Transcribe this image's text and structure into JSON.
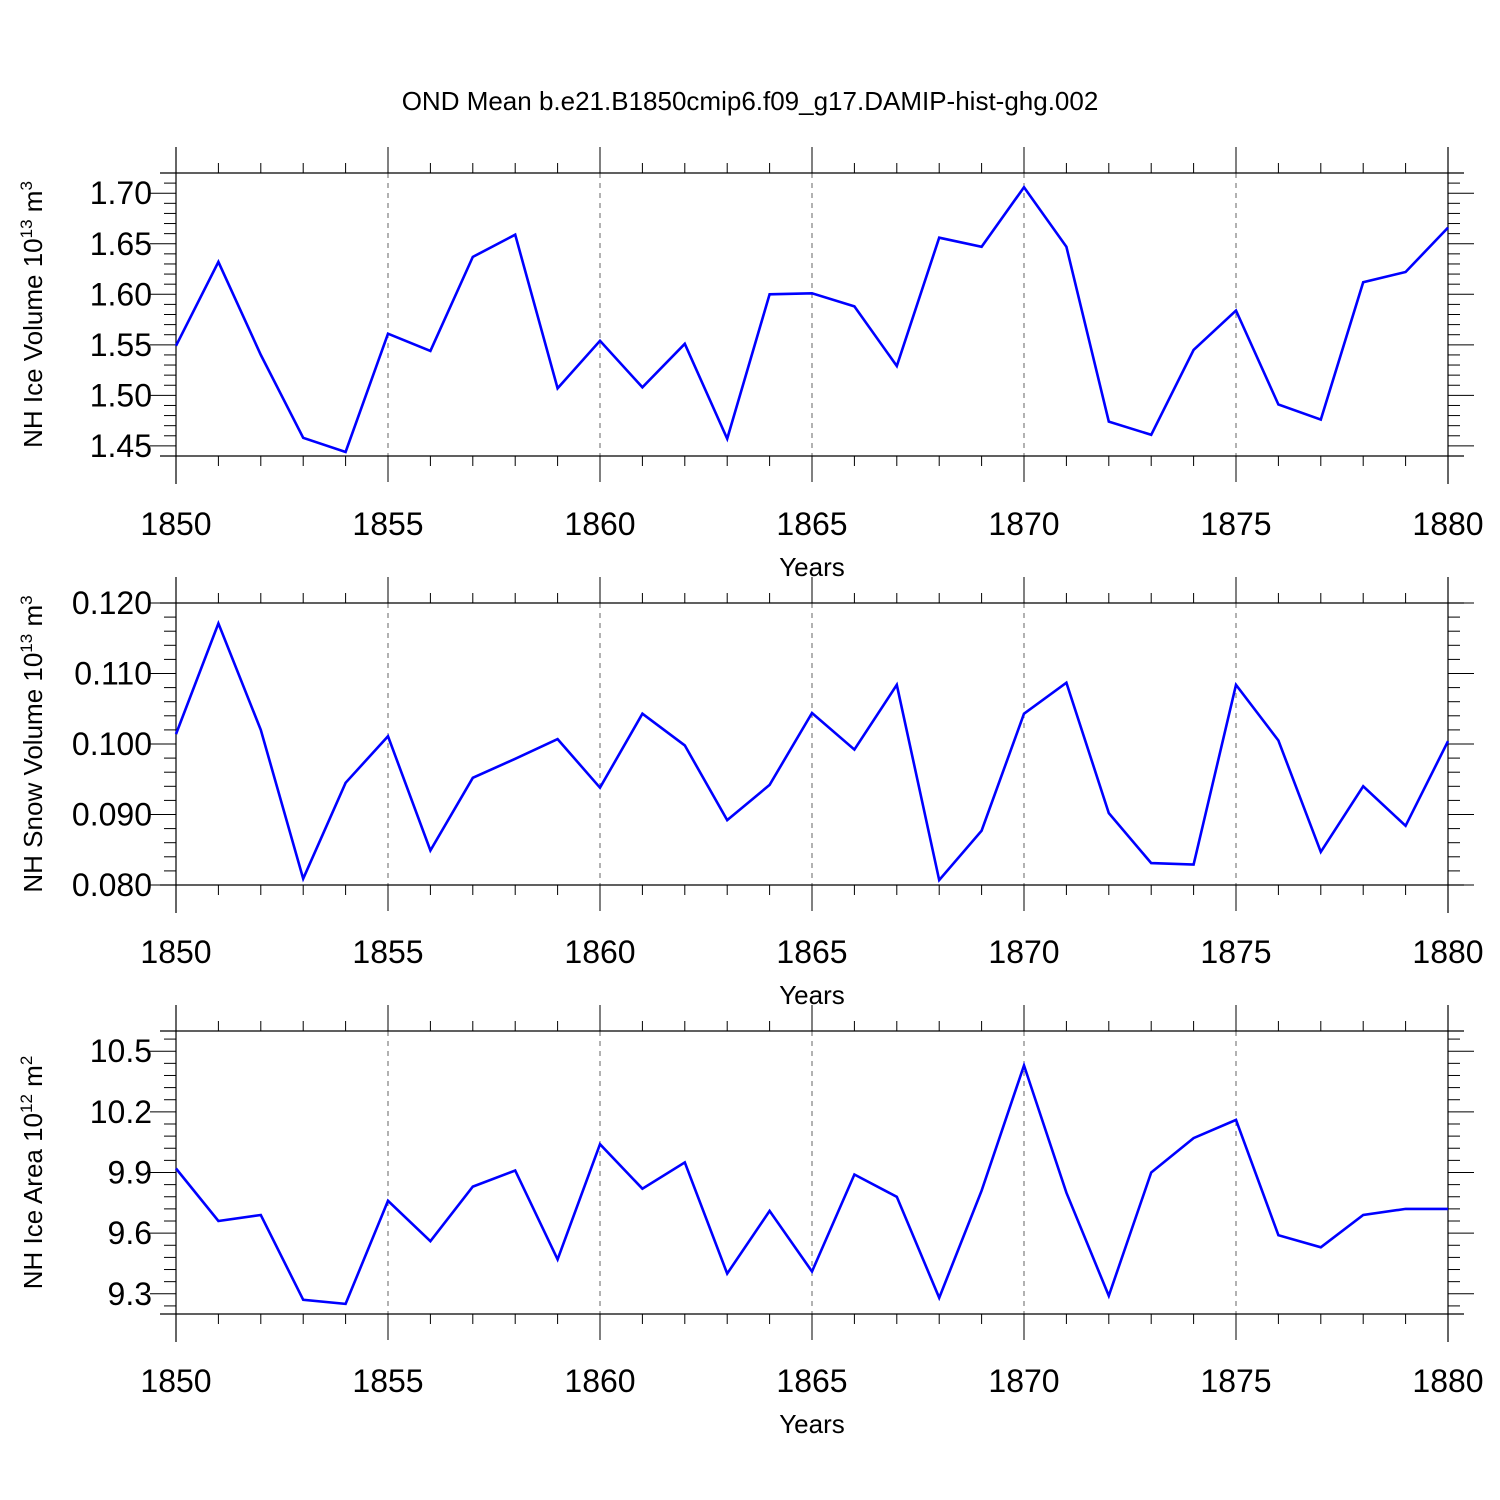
{
  "title": "OND Mean b.e21.B1850cmip6.f09_g17.DAMIP-hist-ghg.002",
  "line_color": "#0000ff",
  "chart_data": [
    {
      "type": "line",
      "title": "OND Mean b.e21.B1850cmip6.f09_g17.DAMIP-hist-ghg.002",
      "xlabel": "Years",
      "ylabel": {
        "main": "NH Ice Volume 10",
        "exp": "13",
        "unit": " m",
        "unit_exp": "3"
      },
      "xlim": [
        1850,
        1880
      ],
      "ylim": [
        1.44,
        1.72
      ],
      "xticks": [
        1850,
        1855,
        1860,
        1865,
        1870,
        1875,
        1880
      ],
      "yticks": [
        1.45,
        1.5,
        1.55,
        1.6,
        1.65,
        1.7
      ],
      "ytick_labels": [
        "1.45",
        "1.50",
        "1.55",
        "1.60",
        "1.65",
        "1.70"
      ],
      "grid": "x-dashed",
      "x": [
        1850,
        1851,
        1852,
        1853,
        1854,
        1855,
        1856,
        1857,
        1858,
        1859,
        1860,
        1861,
        1862,
        1863,
        1864,
        1865,
        1866,
        1867,
        1868,
        1869,
        1870,
        1871,
        1872,
        1873,
        1874,
        1875,
        1876,
        1877,
        1878,
        1879,
        1880
      ],
      "values": [
        1.549,
        1.632,
        1.54,
        1.458,
        1.444,
        1.561,
        1.544,
        1.637,
        1.659,
        1.507,
        1.554,
        1.508,
        1.551,
        1.457,
        1.6,
        1.601,
        1.588,
        1.529,
        1.656,
        1.647,
        1.706,
        1.647,
        1.474,
        1.461,
        1.545,
        1.584,
        1.491,
        1.476,
        1.612,
        1.622,
        1.666
      ]
    },
    {
      "type": "line",
      "xlabel": "Years",
      "ylabel": {
        "main": "NH Snow Volume 10",
        "exp": "13",
        "unit": " m",
        "unit_exp": "3"
      },
      "xlim": [
        1850,
        1880
      ],
      "ylim": [
        0.08,
        0.12
      ],
      "xticks": [
        1850,
        1855,
        1860,
        1865,
        1870,
        1875,
        1880
      ],
      "yticks": [
        0.08,
        0.09,
        0.1,
        0.11,
        0.12
      ],
      "ytick_labels": [
        "0.080",
        "0.090",
        "0.100",
        "0.110",
        "0.120"
      ],
      "grid": "x-dashed",
      "x": [
        1850,
        1851,
        1852,
        1853,
        1854,
        1855,
        1856,
        1857,
        1858,
        1859,
        1860,
        1861,
        1862,
        1863,
        1864,
        1865,
        1866,
        1867,
        1868,
        1869,
        1870,
        1871,
        1872,
        1873,
        1874,
        1875,
        1876,
        1877,
        1878,
        1879,
        1880
      ],
      "values": [
        0.1014,
        0.1171,
        0.102,
        0.0809,
        0.0945,
        0.1011,
        0.0849,
        0.0952,
        0.0979,
        0.1007,
        0.0938,
        0.1043,
        0.0998,
        0.0892,
        0.0942,
        0.1044,
        0.0992,
        0.1084,
        0.0807,
        0.0877,
        0.1043,
        0.1087,
        0.0902,
        0.0831,
        0.0829,
        0.1084,
        0.1005,
        0.0847,
        0.094,
        0.0884,
        0.1004
      ]
    },
    {
      "type": "line",
      "xlabel": "Years",
      "ylabel": {
        "main": "NH Ice Area 10",
        "exp": "12",
        "unit": " m",
        "unit_exp": "2"
      },
      "xlim": [
        1850,
        1880
      ],
      "ylim": [
        9.2,
        10.6
      ],
      "xticks": [
        1850,
        1855,
        1860,
        1865,
        1870,
        1875,
        1880
      ],
      "yticks": [
        9.3,
        9.6,
        9.9,
        10.2,
        10.5
      ],
      "ytick_labels": [
        "9.3",
        "9.6",
        "9.9",
        "10.2",
        "10.5"
      ],
      "grid": "x-dashed",
      "x": [
        1850,
        1851,
        1852,
        1853,
        1854,
        1855,
        1856,
        1857,
        1858,
        1859,
        1860,
        1861,
        1862,
        1863,
        1864,
        1865,
        1866,
        1867,
        1868,
        1869,
        1870,
        1871,
        1872,
        1873,
        1874,
        1875,
        1876,
        1877,
        1878,
        1879,
        1880
      ],
      "values": [
        9.92,
        9.66,
        9.69,
        9.27,
        9.25,
        9.76,
        9.56,
        9.83,
        9.91,
        9.47,
        10.04,
        9.82,
        9.95,
        9.4,
        9.71,
        9.41,
        9.89,
        9.78,
        9.28,
        9.81,
        10.43,
        9.8,
        9.29,
        9.9,
        10.07,
        10.16,
        9.59,
        9.53,
        9.69,
        9.72,
        9.72
      ]
    }
  ]
}
